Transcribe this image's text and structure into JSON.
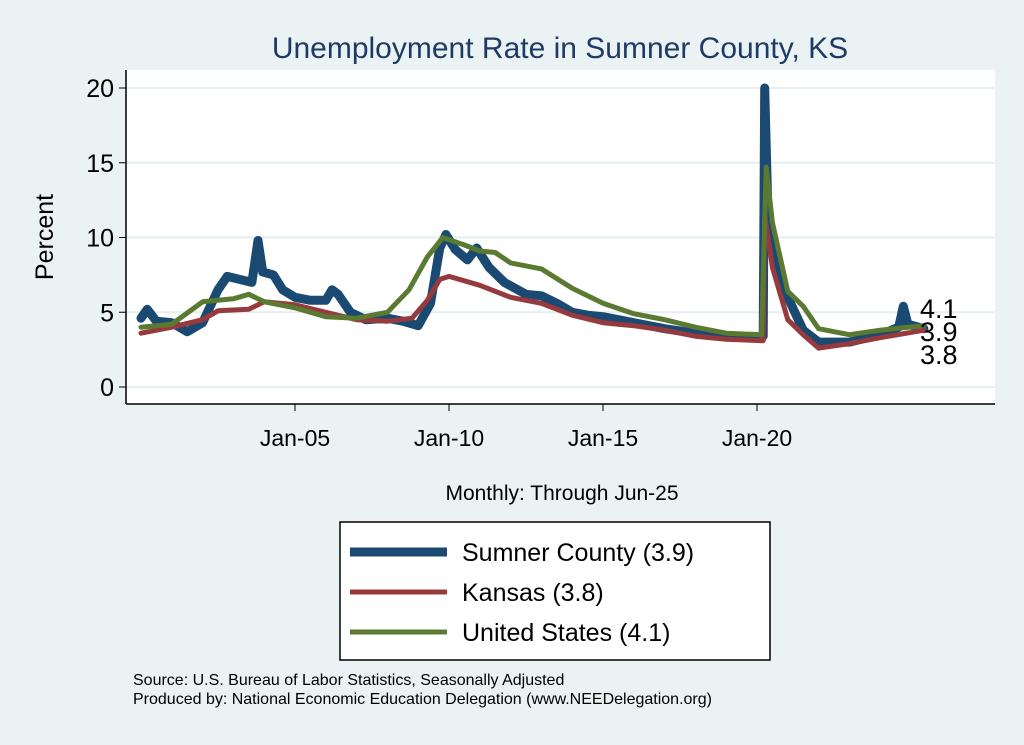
{
  "chart_data": {
    "type": "line",
    "title": "Unemployment Rate in Sumner  County, KS",
    "xlabel": "Monthly: Through Jun-25",
    "ylabel": "Percent",
    "ylim": [
      0,
      20
    ],
    "xlim": [
      1999.5,
      2028.0
    ],
    "yticks": [
      0,
      5,
      10,
      15,
      20
    ],
    "xticks": [
      {
        "value": 2005,
        "label": "Jan-05"
      },
      {
        "value": 2010,
        "label": "Jan-10"
      },
      {
        "value": 2015,
        "label": "Jan-15"
      },
      {
        "value": 2020,
        "label": "Jan-20"
      }
    ],
    "grid": true,
    "legend_position": "bottom",
    "series": [
      {
        "name": "Sumner  County (3.9)",
        "color": "#1a4a72",
        "end_label": "3.9",
        "x": [
          2000.0,
          2000.2,
          2000.5,
          2001,
          2001.5,
          2002,
          2002.5,
          2002.8,
          2003.2,
          2003.6,
          2003.8,
          2003.95,
          2004.3,
          2004.6,
          2005,
          2005.5,
          2006.0,
          2006.2,
          2006.4,
          2006.8,
          2007.3,
          2008,
          2008.5,
          2009.0,
          2009.4,
          2009.7,
          2009.9,
          2010.2,
          2010.6,
          2010.9,
          2011.3,
          2011.8,
          2012.5,
          2013,
          2013.5,
          2014,
          2014.5,
          2015,
          2016,
          2017,
          2018,
          2019,
          2020.0,
          2020.2,
          2020.25,
          2020.35,
          2020.6,
          2021,
          2021.5,
          2022,
          2023,
          2024,
          2024.6,
          2024.75,
          2024.9,
          2025.42
        ],
        "y": [
          4.6,
          5.2,
          4.4,
          4.3,
          3.7,
          4.3,
          6.5,
          7.4,
          7.2,
          7.0,
          9.8,
          7.7,
          7.5,
          6.5,
          6.0,
          5.8,
          5.8,
          6.5,
          6.2,
          5.0,
          4.5,
          4.6,
          4.4,
          4.1,
          5.6,
          9.3,
          10.2,
          9.2,
          8.5,
          9.3,
          8.0,
          7.0,
          6.2,
          6.1,
          5.6,
          5.0,
          4.8,
          4.7,
          4.3,
          3.9,
          3.6,
          3.4,
          3.3,
          3.4,
          20.0,
          12.0,
          8.0,
          6.0,
          3.8,
          3.0,
          3.0,
          3.5,
          4.0,
          5.4,
          4.2,
          3.9
        ],
        "width": 9
      },
      {
        "name": "Kansas (3.8)",
        "color": "#963a3e",
        "end_label": "3.8",
        "x": [
          2000,
          2001,
          2002,
          2002.5,
          2003.5,
          2004,
          2004.5,
          2005,
          2006,
          2007,
          2008,
          2008.8,
          2009.3,
          2009.7,
          2010,
          2011,
          2012,
          2013,
          2014,
          2015,
          2016,
          2017,
          2018,
          2019,
          2020.2,
          2020.25,
          2020.5,
          2021,
          2021.5,
          2022,
          2023,
          2024,
          2025.42
        ],
        "y": [
          3.6,
          4.0,
          4.5,
          5.1,
          5.2,
          5.7,
          5.6,
          5.5,
          5.0,
          4.5,
          4.4,
          4.6,
          5.8,
          7.2,
          7.4,
          6.8,
          6.0,
          5.6,
          4.8,
          4.3,
          4.1,
          3.8,
          3.4,
          3.2,
          3.1,
          11.5,
          8.0,
          4.5,
          3.5,
          2.6,
          2.9,
          3.3,
          3.8
        ],
        "width": 5
      },
      {
        "name": "United States (4.1)",
        "color": "#5a7a32",
        "end_label": "4.1",
        "x": [
          2000,
          2001,
          2002,
          2003,
          2003.5,
          2004,
          2005,
          2006,
          2007,
          2008,
          2008.7,
          2009.3,
          2009.8,
          2010.5,
          2011,
          2011.5,
          2012,
          2013,
          2014,
          2015,
          2016,
          2017,
          2018,
          2019,
          2020.15,
          2020.3,
          2020.5,
          2021,
          2021.5,
          2022,
          2023,
          2024,
          2025.42
        ],
        "y": [
          4.0,
          4.2,
          5.7,
          5.9,
          6.2,
          5.7,
          5.3,
          4.7,
          4.6,
          5.0,
          6.5,
          8.7,
          10.0,
          9.5,
          9.1,
          9.0,
          8.3,
          7.9,
          6.6,
          5.6,
          4.9,
          4.5,
          4.0,
          3.6,
          3.5,
          14.7,
          11.0,
          6.4,
          5.4,
          3.9,
          3.5,
          3.8,
          4.1
        ],
        "width": 5
      }
    ],
    "source_lines": [
      "Source: U.S. Bureau of Labor Statistics, Seasonally Adjusted",
      "Produced by: National Economic Education Delegation (www.NEEDelegation.org)"
    ]
  }
}
